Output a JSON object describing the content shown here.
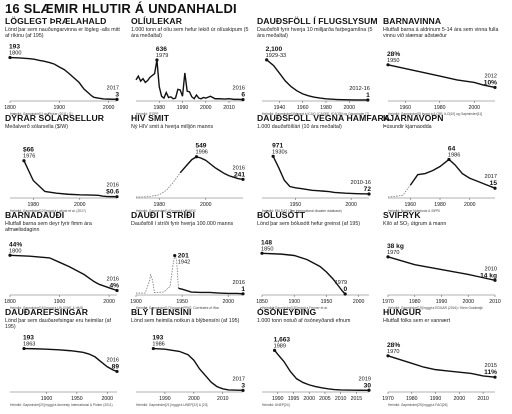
{
  "title": "16 SLÆMIR HLUTIR Á UNDANHALDI",
  "chart_data": [
    {
      "type": "line",
      "title": "LÖGLEGT ÞRÆLAHALD",
      "subtitle": "Lönd þar sem nauðungarvinna er lögleg\n-alls mitt af ríkinu (af 195)",
      "xlim": [
        1800,
        2017
      ],
      "ylim": [
        0,
        200
      ],
      "xticks": [
        1800,
        1900,
        2000
      ],
      "x": [
        1800,
        1820,
        1840,
        1850,
        1860,
        1870,
        1880,
        1890,
        1900,
        1910,
        1920,
        1930,
        1940,
        1950,
        1960,
        1965,
        1970,
        1980,
        1990,
        2000,
        2017
      ],
      "y": [
        193,
        191,
        188,
        185,
        180,
        176,
        170,
        163,
        150,
        138,
        120,
        100,
        80,
        50,
        30,
        20,
        12,
        8,
        5,
        4,
        3
      ],
      "labels": [
        {
          "text": "193",
          "year": "1800",
          "x": 1800,
          "y": 193,
          "pos": "above"
        },
        {
          "text": "3",
          "year": "2017",
          "x": 2017,
          "y": 3,
          "pos": "above"
        }
      ],
      "source": "Heimild: Gapminder[1] og Pinker (2011) [1]"
    },
    {
      "type": "line",
      "title": "OLÍULEKAR",
      "subtitle": "1.000 tonn af olíu sem hefur lekið úr olíuskipum\n(5 ára meðaltal)",
      "xlim": [
        1970,
        2016
      ],
      "ylim": [
        0,
        700
      ],
      "xticks": [
        1980,
        1990,
        2000,
        2010
      ],
      "x": [
        1970,
        1971,
        1972,
        1973,
        1974,
        1975,
        1976,
        1977,
        1978,
        1979,
        1980,
        1981,
        1982,
        1983,
        1984,
        1985,
        1986,
        1987,
        1988,
        1989,
        1990,
        1991,
        1992,
        1993,
        1994,
        1995,
        1996,
        1997,
        1998,
        1999,
        2000,
        2002,
        2004,
        2006,
        2008,
        2010,
        2012,
        2014,
        2016
      ],
      "y": [
        320,
        380,
        300,
        340,
        280,
        310,
        360,
        390,
        420,
        636,
        210,
        60,
        30,
        120,
        40,
        50,
        20,
        30,
        170,
        160,
        60,
        430,
        140,
        130,
        50,
        20,
        80,
        30,
        20,
        40,
        30,
        60,
        20,
        20,
        15,
        20,
        10,
        10,
        6
      ],
      "labels": [
        {
          "text": "636",
          "year": "1979",
          "x": 1979,
          "y": 636,
          "pos": "above"
        },
        {
          "text": "6",
          "year": "2016",
          "x": 2016,
          "y": 6,
          "pos": "above"
        }
      ],
      "source": "Heimild: ITOPF"
    },
    {
      "type": "line",
      "title": "DAUÐSFÖLL Í FLUGSLYSUM",
      "subtitle": "Dauðsföll fyrir hverja 10 milljarða farþegamílna\n(5 ára meðaltal)",
      "xlim": [
        1925,
        2017
      ],
      "ylim": [
        0,
        2300
      ],
      "xticks": [
        1940,
        1960,
        1980,
        2000
      ],
      "x": [
        1929,
        1935,
        1940,
        1945,
        1950,
        1955,
        1960,
        1965,
        1970,
        1975,
        1980,
        1985,
        1990,
        1995,
        2000,
        2005,
        2010,
        2016
      ],
      "y": [
        2100,
        1800,
        1400,
        1000,
        700,
        480,
        320,
        220,
        150,
        100,
        60,
        40,
        25,
        15,
        8,
        4,
        2,
        1
      ],
      "labels": [
        {
          "text": "2,100",
          "year": "1929-33",
          "x": 1929,
          "y": 2100,
          "pos": "above"
        },
        {
          "text": "1",
          "year": "2012-16",
          "x": 2016,
          "y": 1,
          "pos": "above"
        }
      ],
      "source": "Heimild: Gapminder[4] byggt á ICAO, ICAO[5], ICAO[6] og Gapminder [7]"
    },
    {
      "type": "line",
      "title": "BARNAVINNA",
      "subtitle": "Hlutfall barna á aldrinum 5-14 ára sem\nvinna fulla vinnu við slæmar aðstæður",
      "xlim": [
        1950,
        2012
      ],
      "ylim": [
        0,
        35
      ],
      "xticks": [
        1960,
        1980,
        2000
      ],
      "x": [
        1950,
        1960,
        1970,
        1980,
        1990,
        2000,
        2005,
        2012
      ],
      "y": [
        28,
        25,
        22,
        19,
        16,
        14,
        12,
        10
      ],
      "labels": [
        {
          "text": "28%",
          "year": "1950",
          "x": 1950,
          "y": 28,
          "pos": "above"
        },
        {
          "text": "10%",
          "year": "2012",
          "x": 2012,
          "y": 10,
          "pos": "above"
        }
      ],
      "source": "Heimild: Gapminder[8] byggt á ILO[9], ILO[10] og Gapminder[11]"
    },
    {
      "type": "line",
      "title": "DÝRAR SÓLARSELLUR",
      "subtitle": "Meðalverð sólarsella ($/W)",
      "xlim": [
        1970,
        2016
      ],
      "ylim": [
        0,
        80
      ],
      "xticks": [
        1980,
        2000
      ],
      "x": [
        1976,
        1980,
        1985,
        1990,
        1995,
        2000,
        2005,
        2008,
        2010,
        2012,
        2014,
        2016
      ],
      "y": [
        66,
        30,
        10,
        7,
        5,
        4,
        3.5,
        3,
        1.5,
        0.8,
        0.7,
        0.6
      ],
      "labels": [
        {
          "text": "$66",
          "year": "1976",
          "x": 1976,
          "y": 66,
          "pos": "above"
        },
        {
          "text": "$0.6",
          "year": "2016",
          "x": 2016,
          "y": 0.6,
          "pos": "above"
        }
      ],
      "source": "Heimild: Gapminder[12] byggt á Lafond et al. (2017)"
    },
    {
      "type": "line",
      "title": "HIV SMIT",
      "subtitle": "Ný HIV smit á hverja milljón manns",
      "xlim": [
        1970,
        2016
      ],
      "ylim": [
        0,
        600
      ],
      "xticks": [
        1980,
        2000
      ],
      "x": [
        1970,
        1975,
        1980,
        1983,
        1986,
        1989,
        1992,
        1994,
        1996,
        1998,
        2000,
        2002,
        2004,
        2006,
        2008,
        2010,
        2012,
        2014,
        2016
      ],
      "y": [
        0,
        3,
        30,
        90,
        200,
        330,
        440,
        510,
        549,
        530,
        500,
        450,
        400,
        360,
        320,
        290,
        270,
        250,
        241
      ],
      "dashed_until": 1990,
      "labels": [
        {
          "text": "549",
          "year": "1996",
          "x": 1996,
          "y": 549,
          "pos": "above"
        },
        {
          "text": "241",
          "year": "2016",
          "x": 2016,
          "y": 241,
          "pos": "above"
        }
      ],
      "source": "Heimild: Gapminder[14] byggt á UNAIDS"
    },
    {
      "type": "line",
      "title": "DAUÐSFÖLL VEGNA HAMFARA",
      "subtitle": "1.000 dauðsföll/ári (10 ára meðaltal)",
      "xlim": [
        1920,
        2016
      ],
      "ylim": [
        0,
        1050
      ],
      "xticks": [
        1950,
        2000
      ],
      "x": [
        1930,
        1935,
        1940,
        1945,
        1950,
        1955,
        1960,
        1965,
        1970,
        1975,
        1980,
        1985,
        1990,
        1995,
        2000,
        2005,
        2010,
        2016
      ],
      "y": [
        971,
        700,
        400,
        250,
        220,
        200,
        180,
        160,
        150,
        140,
        130,
        110,
        100,
        90,
        85,
        80,
        75,
        72
      ],
      "labels": [
        {
          "text": "971",
          "year": "1930s",
          "x": 1930,
          "y": 971,
          "pos": "above"
        },
        {
          "text": "72",
          "year": "2010-16",
          "x": 2016,
          "y": 72,
          "pos": "above"
        }
      ],
      "source": "Heimild: EM-DAT (The international disaster database)"
    },
    {
      "type": "line",
      "title": "KJARNAVOPN",
      "subtitle": "Þúsundir kjarnaodda",
      "xlim": [
        1945,
        2017
      ],
      "ylim": [
        0,
        75
      ],
      "xticks": [
        1960,
        1980,
        2000
      ],
      "x": [
        1945,
        1950,
        1955,
        1960,
        1965,
        1970,
        1975,
        1980,
        1986,
        1990,
        1995,
        2000,
        2005,
        2010,
        2017
      ],
      "y": [
        0,
        1,
        3,
        20,
        38,
        40,
        45,
        52,
        64,
        55,
        40,
        32,
        27,
        22,
        15
      ],
      "dashed_until": 1960,
      "labels": [
        {
          "text": "64",
          "year": "1986",
          "x": 1986,
          "y": 64,
          "pos": "above"
        },
        {
          "text": "15",
          "year": "2017",
          "x": 2017,
          "y": 15,
          "pos": "above"
        }
      ],
      "source": "Heimild: Nuclear Notebook & SIPRI"
    },
    {
      "type": "line",
      "title": "BARNADAUÐI",
      "subtitle": "Hlutfall barna sem deyr fyrir fimm ára afmælisdaginn",
      "xlim": [
        1800,
        2016
      ],
      "ylim": [
        0,
        50
      ],
      "xticks": [
        1800,
        1900,
        2000
      ],
      "x": [
        1800,
        1840,
        1880,
        1900,
        1920,
        1940,
        1950,
        1960,
        1970,
        1980,
        1990,
        2000,
        2016
      ],
      "y": [
        44,
        43,
        41,
        36,
        31,
        25,
        22,
        18,
        14,
        11,
        9,
        7,
        4
      ],
      "labels": [
        {
          "text": "44%",
          "year": "1800",
          "x": 1800,
          "y": 44,
          "pos": "above"
        },
        {
          "text": "4%",
          "year": "2016",
          "x": 2016,
          "y": 4,
          "pos": "above"
        }
      ],
      "source": "Heimild: Gapminder[16] byggt á UN-IGME & HMD"
    },
    {
      "type": "line",
      "title": "DAUÐI Í STRÍÐI",
      "subtitle": "Dauðsföll í stríði fyrir hverja 100.000 manns",
      "xlim": [
        1900,
        2016
      ],
      "ylim": [
        0,
        230
      ],
      "xticks": [
        1900,
        1950,
        2000
      ],
      "x": [
        1900,
        1910,
        1914,
        1916,
        1918,
        1920,
        1930,
        1937,
        1940,
        1942,
        1944,
        1946,
        1950,
        1960,
        1970,
        1980,
        1990,
        2000,
        2010,
        2016
      ],
      "y": [
        5,
        5,
        60,
        100,
        70,
        8,
        10,
        40,
        150,
        201,
        180,
        30,
        25,
        10,
        8,
        8,
        5,
        3,
        3,
        1
      ],
      "dashed_until": 1946,
      "labels": [
        {
          "text": "201",
          "year": "1942",
          "x": 1942,
          "y": 201,
          "pos": "right"
        },
        {
          "text": "1",
          "year": "2016",
          "x": 2016,
          "y": 1,
          "pos": "above"
        }
      ],
      "source": "Heimild: Gapminder[17] byggt á PRIO, Correlates of War"
    },
    {
      "type": "line",
      "title": "BÓLUSÓTT",
      "subtitle": "Lönd þar sem bólusótt hefur greinst (af 195)",
      "xlim": [
        1850,
        2016
      ],
      "ylim": [
        0,
        160
      ],
      "xticks": [
        1850,
        1900,
        1950,
        2000
      ],
      "x": [
        1850,
        1880,
        1900,
        1920,
        1940,
        1950,
        1960,
        1970,
        1975,
        1979
      ],
      "y": [
        148,
        145,
        140,
        125,
        100,
        80,
        55,
        25,
        10,
        0
      ],
      "labels": [
        {
          "text": "148",
          "year": "1850",
          "x": 1850,
          "y": 148,
          "pos": "above"
        },
        {
          "text": "0",
          "year": "1979",
          "x": 1979,
          "y": 0,
          "pos": "above"
        }
      ],
      "source": "Heimild: Gapminder[18] byggt á Fenner et al."
    },
    {
      "type": "line",
      "title": "SVIFRYK",
      "subtitle": "Kíló af SO₂ útgrum á mann",
      "xlim": [
        1970,
        2010
      ],
      "ylim": [
        0,
        45
      ],
      "xticks": [
        1970,
        1980,
        1990,
        2000,
        2010
      ],
      "x": [
        1970,
        1980,
        1990,
        2000,
        2005,
        2010
      ],
      "y": [
        38,
        30,
        25,
        20,
        17,
        14
      ],
      "labels": [
        {
          "text": "38 kg",
          "year": "1970",
          "x": 1970,
          "y": 38,
          "pos": "above"
        },
        {
          "text": "14 kg",
          "year": "2010",
          "x": 2010,
          "y": 14,
          "pos": "above"
        }
      ],
      "source": "Heimild: Gapminder[19] byggt á EDGAR (2016) / Klein Goldewijk"
    },
    {
      "type": "line",
      "title": "DAUÐAREFSINGAR",
      "subtitle": "Lönd þar sem dauðarefsingar eru heimilar (af 195)",
      "xlim": [
        1840,
        2016
      ],
      "ylim": [
        0,
        200
      ],
      "xticks": [
        1900,
        1950,
        2000
      ],
      "x": [
        1863,
        1880,
        1900,
        1920,
        1940,
        1960,
        1970,
        1980,
        1990,
        2000,
        2010,
        2016
      ],
      "y": [
        193,
        192,
        190,
        187,
        183,
        176,
        168,
        155,
        132,
        110,
        95,
        89
      ],
      "labels": [
        {
          "text": "193",
          "year": "1863",
          "x": 1863,
          "y": 193,
          "pos": "above"
        },
        {
          "text": "89",
          "year": "2016",
          "x": 2016,
          "y": 89,
          "pos": "above"
        }
      ],
      "source": "Heimild: Gapminder[20] byggt á Amnesty International & Pinker (2011)"
    },
    {
      "type": "line",
      "title": "BLÝ Í BENSÍNI",
      "subtitle": "Lönd sem heimila notkun á blýbensíni (af 195)",
      "xlim": [
        1980,
        2017
      ],
      "ylim": [
        0,
        200
      ],
      "xticks": [
        1990,
        2000,
        2010
      ],
      "x": [
        1986,
        1990,
        1995,
        1998,
        2000,
        2002,
        2004,
        2006,
        2008,
        2010,
        2012,
        2017
      ],
      "y": [
        193,
        190,
        180,
        165,
        140,
        100,
        70,
        40,
        20,
        10,
        5,
        3
      ],
      "labels": [
        {
          "text": "193",
          "year": "1986",
          "x": 1986,
          "y": 193,
          "pos": "above"
        },
        {
          "text": "3",
          "year": "2017",
          "x": 2017,
          "y": 3,
          "pos": "above"
        }
      ],
      "source": "Heimild: Gapminder[21] byggt á UNEP[22] & [23]"
    },
    {
      "type": "line",
      "title": "ÓSÓNEYÐING",
      "subtitle": "1.000 tonn notuð af ósóneyðandi efnum",
      "xlim": [
        1985,
        2019
      ],
      "ylim": [
        0,
        1800
      ],
      "xticks": [
        1990,
        1995,
        2000,
        2005,
        2010,
        2015
      ],
      "x": [
        1989,
        1990,
        1992,
        1994,
        1996,
        1998,
        2000,
        2002,
        2004,
        2006,
        2008,
        2010,
        2012,
        2014,
        2016,
        2019
      ],
      "y": [
        1663,
        1500,
        1200,
        800,
        500,
        350,
        250,
        180,
        130,
        90,
        60,
        45,
        38,
        33,
        31,
        30
      ],
      "labels": [
        {
          "text": "1,663",
          "year": "1989",
          "x": 1989,
          "y": 1663,
          "pos": "above"
        },
        {
          "text": "30",
          "year": "2019",
          "x": 2019,
          "y": 30,
          "pos": "above"
        }
      ],
      "source": "Heimild: UNEP[24]"
    },
    {
      "type": "line",
      "title": "HUNGUR",
      "subtitle": "Hlutfall fólks sem er vannært",
      "xlim": [
        1970,
        2015
      ],
      "ylim": [
        0,
        35
      ],
      "xticks": [
        1970,
        1980,
        1990,
        2000,
        2010
      ],
      "x": [
        1970,
        1975,
        1980,
        1985,
        1990,
        1995,
        2000,
        2005,
        2010,
        2015
      ],
      "y": [
        28,
        25,
        22,
        19,
        17,
        16,
        15,
        14,
        12,
        11
      ],
      "labels": [
        {
          "text": "28%",
          "year": "1970",
          "x": 1970,
          "y": 28,
          "pos": "above"
        },
        {
          "text": "11%",
          "year": "2015",
          "x": 2015,
          "y": 11,
          "pos": "above"
        }
      ],
      "source": "Heimild: Gapminder[25] byggt á FAO[26]"
    }
  ]
}
